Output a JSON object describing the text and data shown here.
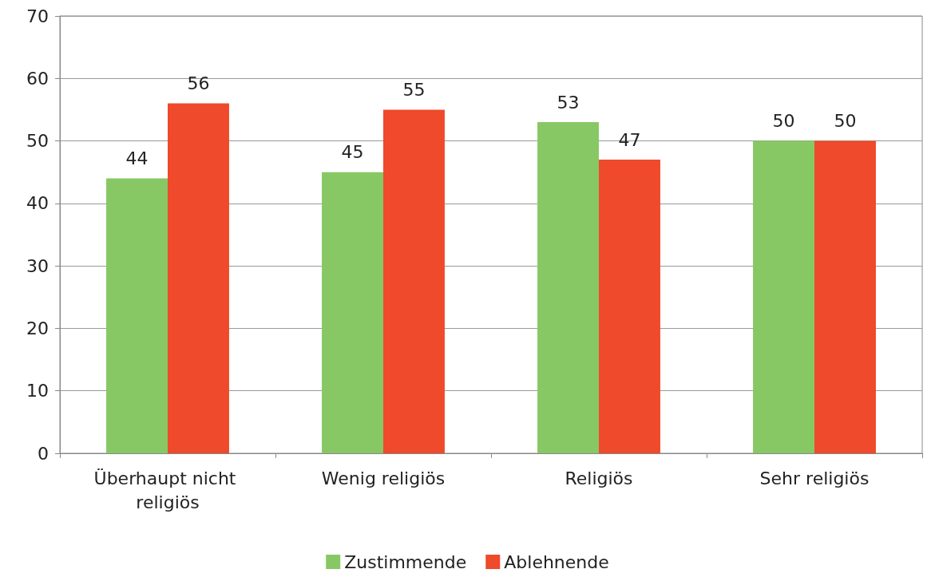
{
  "chart_data": {
    "type": "bar",
    "categories": [
      "Überhaupt nicht religiös",
      "Wenig religiös",
      "Religiös",
      "Sehr religiös"
    ],
    "series": [
      {
        "name": "Zustimmende",
        "color": "#88c864",
        "values": [
          44,
          45,
          53,
          50
        ]
      },
      {
        "name": "Ablehnende",
        "color": "#ee4a2b",
        "values": [
          56,
          55,
          47,
          50
        ]
      }
    ],
    "ylim": [
      0,
      70
    ],
    "yticks": [
      0,
      10,
      20,
      30,
      40,
      50,
      60,
      70
    ],
    "grid": "y",
    "legend": "bottom",
    "data_labels": true
  }
}
